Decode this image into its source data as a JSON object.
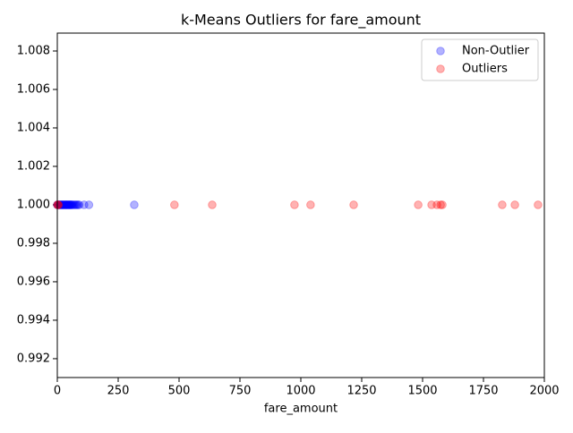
{
  "chart_data": {
    "type": "scatter",
    "title": "k-Means Outliers for fare_amount",
    "x_label": "fare_amount",
    "xlim": [
      0,
      2000
    ],
    "xticks": [
      0,
      250,
      500,
      750,
      1000,
      1250,
      1500,
      1750,
      2000
    ],
    "ylim": [
      0.99102,
      1.00893
    ],
    "yticks": [
      0.992,
      0.994,
      0.996,
      0.998,
      {
        "value": 1,
        "label": "1.000"
      },
      1.002,
      1.004,
      1.006,
      1.008
    ],
    "legend": "upper right",
    "alpha": 0.3,
    "series": [
      {
        "name": "Non-Outlier",
        "color": "#0000ff",
        "x": [
          0,
          2,
          5,
          8,
          10,
          12,
          15,
          18,
          20,
          22,
          25,
          28,
          30,
          33,
          35,
          38,
          40,
          42,
          45,
          48,
          50,
          52,
          55,
          58,
          60,
          65,
          70,
          75,
          80,
          85,
          90,
          110,
          130,
          316
        ],
        "y": [
          1,
          1,
          1,
          1,
          1,
          1,
          1,
          1,
          1,
          1,
          1,
          1,
          1,
          1,
          1,
          1,
          1,
          1,
          1,
          1,
          1,
          1,
          1,
          1,
          1,
          1,
          1,
          1,
          1,
          1,
          1,
          1,
          1,
          1
        ]
      },
      {
        "name": "Outliers",
        "color": "#ff0000",
        "x": [
          0,
          3,
          5,
          481,
          636,
          974,
          1040,
          1217,
          1482,
          1537,
          1559,
          1574,
          1581,
          1827,
          1879,
          1974
        ],
        "y": [
          1,
          1,
          1,
          1,
          1,
          1,
          1,
          1,
          1,
          1,
          1,
          1,
          1,
          1,
          1,
          1
        ]
      }
    ]
  }
}
